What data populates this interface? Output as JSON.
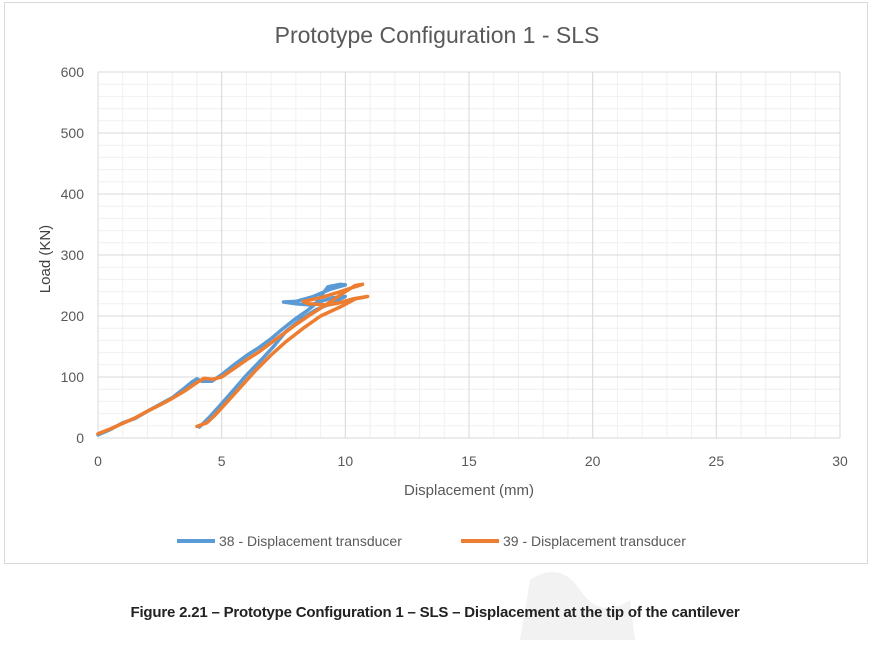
{
  "chart_data": {
    "type": "line",
    "title": "Prototype Configuration 1 - SLS",
    "xlabel": "Displacement (mm)",
    "ylabel": "Load (KN)",
    "xlim": [
      0,
      30
    ],
    "ylim": [
      0,
      600
    ],
    "x_ticks": [
      0,
      5,
      10,
      15,
      20,
      25,
      30
    ],
    "y_ticks": [
      0,
      100,
      200,
      300,
      400,
      500,
      600
    ],
    "grid": true,
    "legend": "bottom",
    "series": [
      {
        "name": "38 - Displacement transducer",
        "color": "#5b9bd5",
        "points": [
          [
            0,
            5
          ],
          [
            0.5,
            14
          ],
          [
            1,
            25
          ],
          [
            1.5,
            32
          ],
          [
            2,
            44
          ],
          [
            2.5,
            55
          ],
          [
            3,
            66
          ],
          [
            3.5,
            82
          ],
          [
            3.8,
            92
          ],
          [
            4.0,
            97
          ],
          [
            4.2,
            93
          ],
          [
            4.6,
            93
          ],
          [
            5.0,
            104
          ],
          [
            5.5,
            120
          ],
          [
            6.0,
            135
          ],
          [
            6.5,
            148
          ],
          [
            7.0,
            163
          ],
          [
            7.5,
            180
          ],
          [
            8.0,
            196
          ],
          [
            8.5,
            210
          ],
          [
            8.8,
            220
          ],
          [
            9.0,
            232
          ],
          [
            9.3,
            248
          ],
          [
            9.8,
            252
          ],
          [
            10.0,
            251
          ],
          [
            9.4,
            244
          ],
          [
            8.7,
            232
          ],
          [
            8.0,
            224
          ],
          [
            7.5,
            223
          ],
          [
            8.0,
            220
          ],
          [
            8.6,
            218
          ],
          [
            9.0,
            224
          ],
          [
            9.5,
            230
          ],
          [
            10.0,
            232
          ],
          [
            9.5,
            222
          ],
          [
            8.8,
            210
          ],
          [
            8.2,
            195
          ],
          [
            7.6,
            175
          ],
          [
            7.1,
            150
          ],
          [
            6.6,
            128
          ],
          [
            6.0,
            103
          ],
          [
            5.4,
            75
          ],
          [
            4.9,
            52
          ],
          [
            4.5,
            34
          ],
          [
            4.2,
            22
          ],
          [
            4.1,
            18
          ]
        ]
      },
      {
        "name": "39 - Displacement transducer",
        "color": "#ed7d31",
        "points": [
          [
            0,
            7
          ],
          [
            0.5,
            15
          ],
          [
            1,
            24
          ],
          [
            1.5,
            33
          ],
          [
            2,
            44
          ],
          [
            2.5,
            54
          ],
          [
            3,
            65
          ],
          [
            3.5,
            77
          ],
          [
            4.0,
            91
          ],
          [
            4.3,
            98
          ],
          [
            4.6,
            96
          ],
          [
            5.0,
            100
          ],
          [
            5.5,
            114
          ],
          [
            6.0,
            128
          ],
          [
            6.5,
            141
          ],
          [
            7.0,
            156
          ],
          [
            7.5,
            171
          ],
          [
            8.0,
            186
          ],
          [
            8.5,
            200
          ],
          [
            9.0,
            213
          ],
          [
            9.5,
            226
          ],
          [
            10.0,
            240
          ],
          [
            10.4,
            250
          ],
          [
            10.7,
            252
          ],
          [
            10.4,
            248
          ],
          [
            9.8,
            240
          ],
          [
            9.0,
            230
          ],
          [
            8.3,
            224
          ],
          [
            8.5,
            220
          ],
          [
            9.3,
            218
          ],
          [
            9.8,
            222
          ],
          [
            10.3,
            228
          ],
          [
            10.9,
            232
          ],
          [
            10.4,
            228
          ],
          [
            9.8,
            215
          ],
          [
            9.0,
            200
          ],
          [
            8.3,
            180
          ],
          [
            7.6,
            158
          ],
          [
            7.0,
            136
          ],
          [
            6.4,
            112
          ],
          [
            5.8,
            85
          ],
          [
            5.2,
            58
          ],
          [
            4.7,
            36
          ],
          [
            4.4,
            25
          ],
          [
            4.0,
            19
          ]
        ]
      }
    ]
  },
  "caption": "Figure 2.21 – Prototype Configuration 1 – SLS – Displacement at the tip of the cantilever"
}
